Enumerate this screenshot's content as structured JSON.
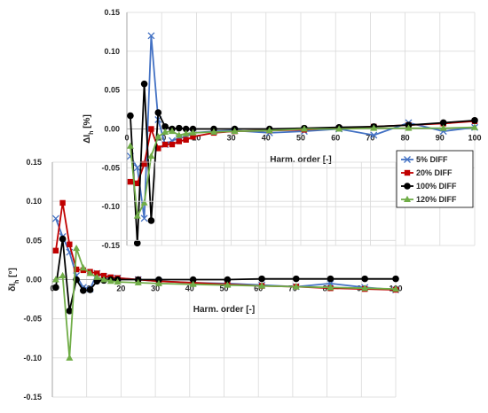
{
  "chart_data": [
    {
      "type": "line",
      "xlabel": "Harm. order [-]",
      "ylabel": "ΔI",
      "ylabel_sub": "h",
      "ylabel_unit": " [%]",
      "xlim": [
        0,
        100
      ],
      "ylim": [
        -0.15,
        0.15
      ],
      "xticks": [
        0,
        10,
        20,
        30,
        40,
        50,
        60,
        70,
        80,
        90,
        100
      ],
      "yticks": [
        0.15,
        0.1,
        0.05,
        0.0,
        -0.05,
        -0.1,
        -0.15
      ],
      "ytick_labels": [
        "0.15",
        "0.10",
        "0.05",
        "0.00",
        "-0.05",
        "-0.10",
        "-0.15"
      ],
      "grid": true,
      "legend": {
        "position": "right",
        "entries": [
          "5% DIFF",
          "20% DIFF",
          "100% DIFF",
          "120% DIFF"
        ]
      },
      "series": [
        {
          "name": "5% DIFF",
          "color": "#4472c4",
          "marker": "x",
          "x": [
            1,
            3,
            5,
            7,
            9,
            11,
            13,
            15,
            17,
            19,
            25,
            31,
            41,
            51,
            61,
            71,
            81,
            91,
            101
          ],
          "y": [
            -0.035,
            -0.05,
            -0.115,
            0.12,
            0.012,
            -0.02,
            -0.015,
            -0.012,
            -0.01,
            -0.005,
            -0.003,
            -0.002,
            -0.005,
            -0.003,
            0.0,
            -0.008,
            0.008,
            -0.003,
            0.002
          ]
        },
        {
          "name": "20% DIFF",
          "color": "#c00000",
          "marker": "square",
          "x": [
            1,
            3,
            5,
            7,
            9,
            11,
            13,
            15,
            17,
            19,
            25,
            31,
            41,
            51,
            61,
            71,
            81,
            91,
            101
          ],
          "y": [
            -0.068,
            -0.07,
            -0.045,
            0.0,
            -0.025,
            -0.02,
            -0.02,
            -0.016,
            -0.014,
            -0.01,
            -0.005,
            -0.003,
            -0.002,
            -0.001,
            0.001,
            0.003,
            0.005,
            0.007,
            0.01
          ]
        },
        {
          "name": "100% DIFF",
          "color": "#000000",
          "marker": "circle",
          "x": [
            1,
            3,
            5,
            7,
            9,
            11,
            13,
            15,
            17,
            19,
            25,
            31,
            41,
            51,
            61,
            71,
            81,
            91,
            101
          ],
          "y": [
            0.017,
            -0.147,
            0.058,
            -0.118,
            0.021,
            0.003,
            0.0,
            0.001,
            0.0,
            0.0,
            0.0,
            0.0,
            0.0,
            0.001,
            0.002,
            0.003,
            0.005,
            0.008,
            0.011
          ]
        },
        {
          "name": "120% DIFF",
          "color": "#70ad47",
          "marker": "triangle",
          "x": [
            1,
            3,
            5,
            7,
            9,
            11,
            13,
            15,
            17,
            19,
            25,
            31,
            41,
            51,
            61,
            71,
            81,
            91,
            101
          ],
          "y": [
            -0.022,
            -0.112,
            -0.095,
            -0.035,
            -0.01,
            -0.004,
            -0.003,
            -0.008,
            -0.006,
            -0.005,
            -0.004,
            -0.003,
            -0.002,
            0.0,
            0.0,
            0.001,
            0.001,
            0.001,
            0.002
          ]
        }
      ]
    },
    {
      "type": "line",
      "xlabel": "Harm. order [-]",
      "ylabel": "δI",
      "ylabel_sub": "h",
      "ylabel_unit": " [°]",
      "xlim": [
        0,
        100
      ],
      "ylim": [
        -0.15,
        0.15
      ],
      "xticks": [
        0,
        10,
        20,
        30,
        40,
        50,
        60,
        70,
        80,
        90,
        100
      ],
      "yticks": [
        0.15,
        0.1,
        0.05,
        0.0,
        -0.05,
        -0.1,
        -0.15
      ],
      "ytick_labels": [
        "0.15",
        "0.10",
        "0.05",
        "0.00",
        "-0.05",
        "-0.10",
        "-0.15"
      ],
      "grid": true,
      "series": [
        {
          "name": "5% DIFF",
          "color": "#4472c4",
          "marker": "x",
          "x": [
            1,
            3,
            5,
            7,
            9,
            11,
            13,
            15,
            17,
            19,
            25,
            31,
            41,
            51,
            61,
            71,
            81,
            91,
            101
          ],
          "y": [
            0.078,
            0.055,
            0.035,
            0.005,
            -0.01,
            -0.012,
            0.008,
            0.004,
            0.002,
            0.002,
            0.0,
            -0.002,
            -0.004,
            -0.005,
            -0.007,
            -0.009,
            -0.005,
            -0.01,
            -0.013
          ]
        },
        {
          "name": "20% DIFF",
          "color": "#c00000",
          "marker": "square",
          "x": [
            1,
            3,
            5,
            7,
            9,
            11,
            13,
            15,
            17,
            19,
            25,
            31,
            41,
            51,
            61,
            71,
            81,
            91,
            101
          ],
          "y": [
            0.037,
            0.098,
            0.045,
            0.013,
            0.012,
            0.01,
            0.008,
            0.005,
            0.003,
            0.002,
            0.0,
            -0.002,
            -0.004,
            -0.006,
            -0.008,
            -0.009,
            -0.011,
            -0.012,
            -0.013
          ]
        },
        {
          "name": "100% DIFF",
          "color": "#000000",
          "marker": "circle",
          "x": [
            1,
            3,
            5,
            7,
            9,
            11,
            13,
            15,
            17,
            19,
            25,
            31,
            41,
            51,
            61,
            71,
            81,
            91,
            101
          ],
          "y": [
            -0.01,
            0.052,
            -0.04,
            0.0,
            -0.014,
            -0.013,
            -0.002,
            -0.001,
            0.0,
            0.0,
            0.0,
            0.0,
            0.0,
            0.0,
            0.001,
            0.001,
            0.001,
            0.001,
            0.001
          ]
        },
        {
          "name": "120% DIFF",
          "color": "#70ad47",
          "marker": "triangle",
          "x": [
            1,
            3,
            5,
            7,
            9,
            11,
            13,
            15,
            17,
            19,
            25,
            31,
            41,
            51,
            61,
            71,
            81,
            91,
            101
          ],
          "y": [
            0.0,
            0.005,
            -0.1,
            0.04,
            0.015,
            0.008,
            0.003,
            0.0,
            -0.002,
            -0.003,
            -0.004,
            -0.005,
            -0.006,
            -0.007,
            -0.008,
            -0.009,
            -0.01,
            -0.011,
            -0.012
          ]
        }
      ]
    }
  ]
}
